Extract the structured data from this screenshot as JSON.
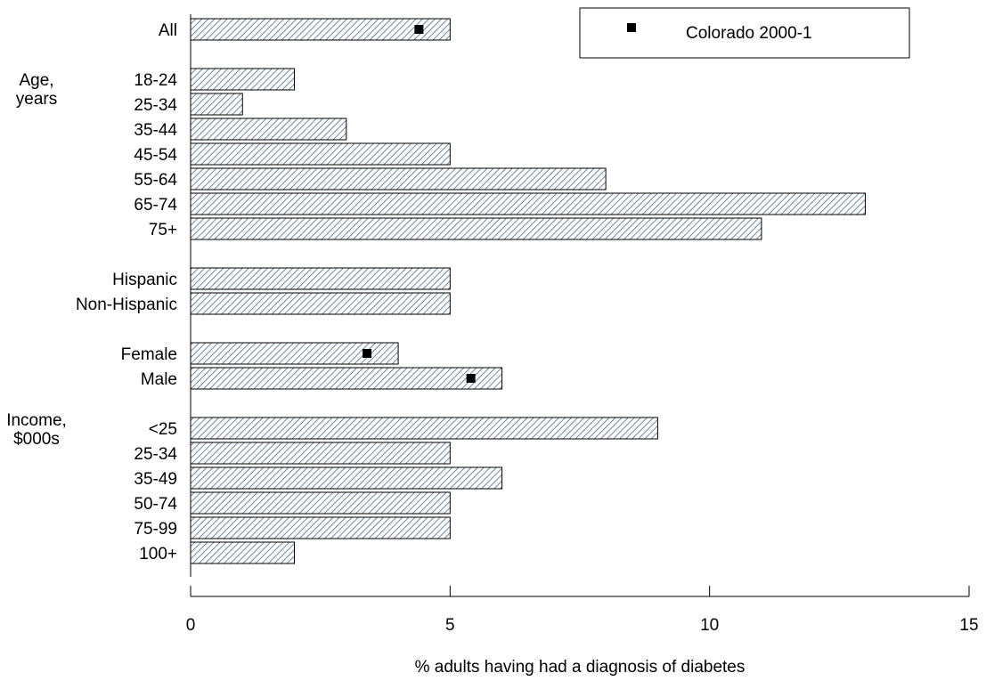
{
  "chart_data": {
    "type": "bar",
    "orientation": "horizontal",
    "xlabel": "% adults having had a diagnosis of diabetes",
    "xlim": [
      0,
      15
    ],
    "xticks": [
      0,
      5,
      10,
      15
    ],
    "grid": false,
    "legend": {
      "placement": "top-right",
      "marker": "square",
      "label": "Colorado 2000-1"
    },
    "bar_color": "#4a6a8a",
    "marker_color": "#000000",
    "groups": [
      {
        "label": "",
        "categories": [
          "All"
        ]
      },
      {
        "label": "Age,\nyears",
        "categories": [
          "18-24",
          "25-34",
          "35-44",
          "45-54",
          "55-64",
          "65-74",
          "75+"
        ]
      },
      {
        "label": "",
        "categories": [
          "Hispanic",
          "Non-Hispanic"
        ]
      },
      {
        "label": "",
        "categories": [
          "Female",
          "Male"
        ]
      },
      {
        "label": "Income,\n$000s",
        "categories": [
          "<25",
          "25-34",
          "35-49",
          "50-74",
          "75-99",
          "100+"
        ]
      }
    ],
    "categories": [
      "All",
      "18-24",
      "25-34",
      "35-44",
      "45-54",
      "55-64",
      "65-74",
      "75+",
      "Hispanic",
      "Non-Hispanic",
      "Female",
      "Male",
      "<25",
      "25-34",
      "35-49",
      "50-74",
      "75-99",
      "100+"
    ],
    "values": [
      5,
      2,
      1,
      3,
      5,
      8,
      13,
      11,
      5,
      5,
      4,
      6,
      9,
      5,
      6,
      5,
      5,
      2
    ],
    "markers": [
      {
        "category_index": 0,
        "value": 4.4
      },
      {
        "category_index": 10,
        "value": 3.4
      },
      {
        "category_index": 11,
        "value": 5.4
      }
    ]
  }
}
